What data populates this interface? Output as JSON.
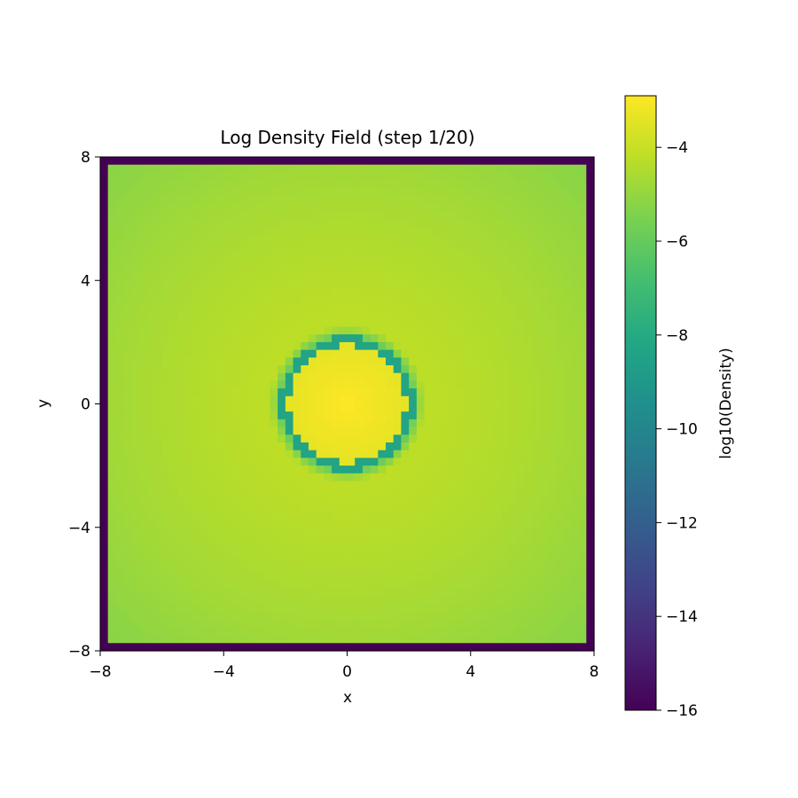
{
  "chart_data": {
    "type": "heatmap",
    "title": "Log Density Field (step 1/20)",
    "xlabel": "x",
    "ylabel": "y",
    "xlim": [
      -8,
      8
    ],
    "ylim": [
      -8,
      8
    ],
    "xticks": [
      -8,
      -4,
      0,
      4,
      8
    ],
    "yticks": [
      -8,
      -4,
      0,
      4,
      8
    ],
    "x_tick_labels": [
      "−8",
      "−4",
      "0",
      "4",
      "8"
    ],
    "y_tick_labels": [
      "−8",
      "−4",
      "0",
      "4",
      "8"
    ],
    "grid": false,
    "colormap": "viridis",
    "colorbar": {
      "label": "log10(Density)",
      "range": [
        -16,
        -2.9
      ],
      "ticks": [
        -16,
        -14,
        -12,
        -10,
        -8,
        -6,
        -4
      ],
      "tick_labels": [
        "−16",
        "−14",
        "−12",
        "−10",
        "−8",
        "−6",
        "−4"
      ]
    },
    "field_description_values": {
      "grid_cells_per_side": 64,
      "boundary_value": -16,
      "center_value": -2.9,
      "bubble_radius": 2.0,
      "ring_value": -8.3,
      "ambient_center_value": -4.1,
      "corner_value": -5.3
    }
  }
}
